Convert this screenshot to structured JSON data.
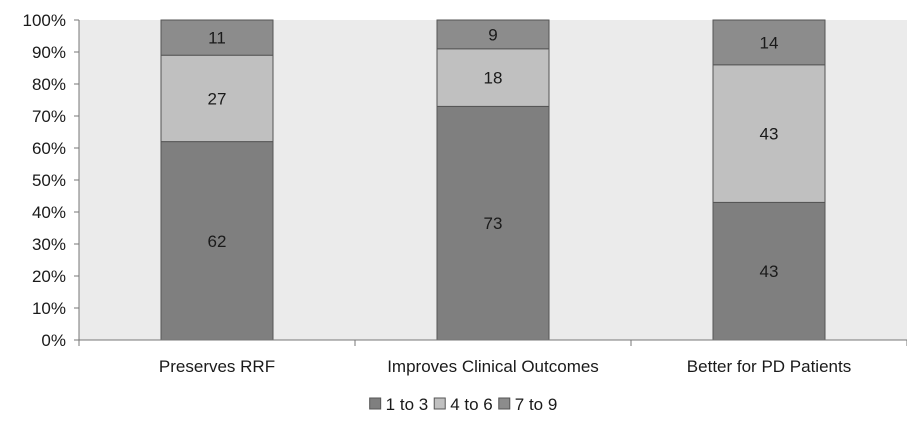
{
  "chart_data": {
    "type": "bar",
    "stacked": true,
    "normalized_percent": true,
    "categories": [
      "Preserves RRF",
      "Improves Clinical Outcomes",
      "Better for PD Patients"
    ],
    "series": [
      {
        "name": "1 to 3",
        "color": "#7f7f7f",
        "values": [
          62,
          73,
          43
        ]
      },
      {
        "name": "4 to 6",
        "color": "#c0c0c0",
        "values": [
          27,
          18,
          43
        ]
      },
      {
        "name": "7 to 9",
        "color": "#8c8c8c",
        "values": [
          11,
          9,
          14
        ]
      }
    ],
    "y_ticks": [
      "0%",
      "10%",
      "20%",
      "30%",
      "40%",
      "50%",
      "60%",
      "70%",
      "80%",
      "90%",
      "100%"
    ],
    "ylim": [
      0,
      100
    ],
    "grid": false,
    "legend_position": "bottom",
    "plot_background": "#ebebeb"
  }
}
